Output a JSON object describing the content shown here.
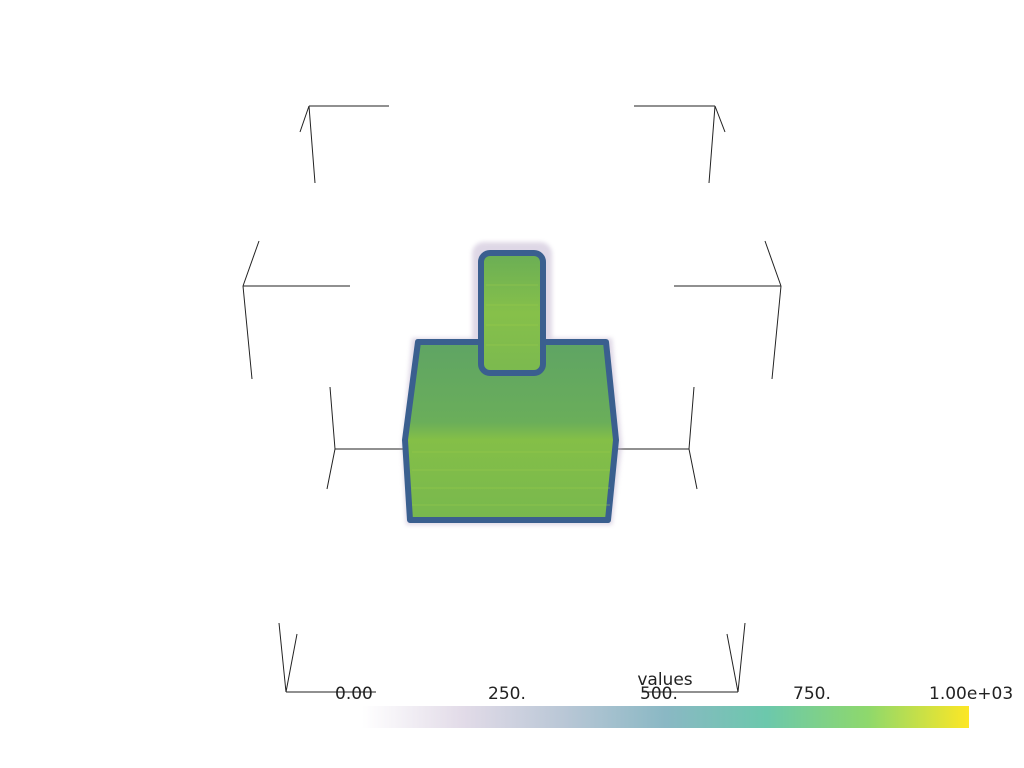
{
  "scalar_bar": {
    "title": "values",
    "tick_labels": [
      "0.00",
      "250.",
      "500.",
      "750.",
      "1.00e+03"
    ],
    "range": [
      0,
      1000
    ],
    "colormap": "viridis",
    "gradient_colors": [
      "#ffffff",
      "#e2dbe8",
      "#b9c7d6",
      "#8ab8c4",
      "#6cc8ac",
      "#8ed86c",
      "#fde725"
    ]
  },
  "volume_colors": {
    "edge": "#3a5f8f",
    "fill": "#5ea764",
    "highlight": "#86c04a"
  }
}
